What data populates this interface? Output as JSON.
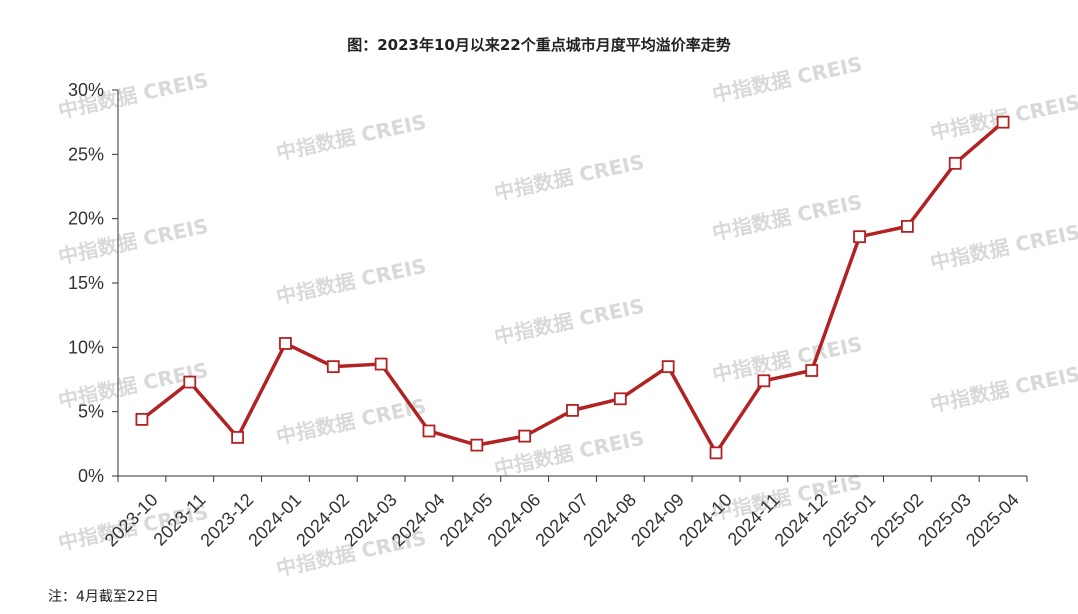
{
  "title": "图：2023年10月以来22个重点城市月度平均溢价率走势",
  "note": "注：4月截至22日",
  "watermark": "中指数据 CREIS",
  "colors": {
    "line": "#b22222",
    "axis": "#333333",
    "marker_fill": "#ffffff"
  },
  "chart_data": {
    "type": "line",
    "title": "图：2023年10月以来22个重点城市月度平均溢价率走势",
    "xlabel": "",
    "ylabel": "",
    "categories": [
      "2023-10",
      "2023-11",
      "2023-12",
      "2024-01",
      "2024-02",
      "2024-03",
      "2024-04",
      "2024-05",
      "2024-06",
      "2024-07",
      "2024-08",
      "2024-09",
      "2024-10",
      "2024-11",
      "2024-12",
      "2025-01",
      "2025-02",
      "2025-03",
      "2025-04"
    ],
    "series": [
      {
        "values": [
          4.4,
          7.3,
          3.0,
          10.3,
          8.5,
          8.7,
          3.5,
          2.4,
          3.1,
          5.1,
          6.0,
          8.5,
          1.8,
          7.4,
          8.2,
          18.6,
          19.4,
          24.3,
          27.5
        ]
      }
    ],
    "ylim": [
      0,
      30
    ],
    "yticks": [
      "0%",
      "5%",
      "10%",
      "15%",
      "20%",
      "25%",
      "30%"
    ],
    "yticks_values": [
      0,
      5,
      10,
      15,
      20,
      25,
      30
    ],
    "grid": false,
    "legend": "none"
  }
}
